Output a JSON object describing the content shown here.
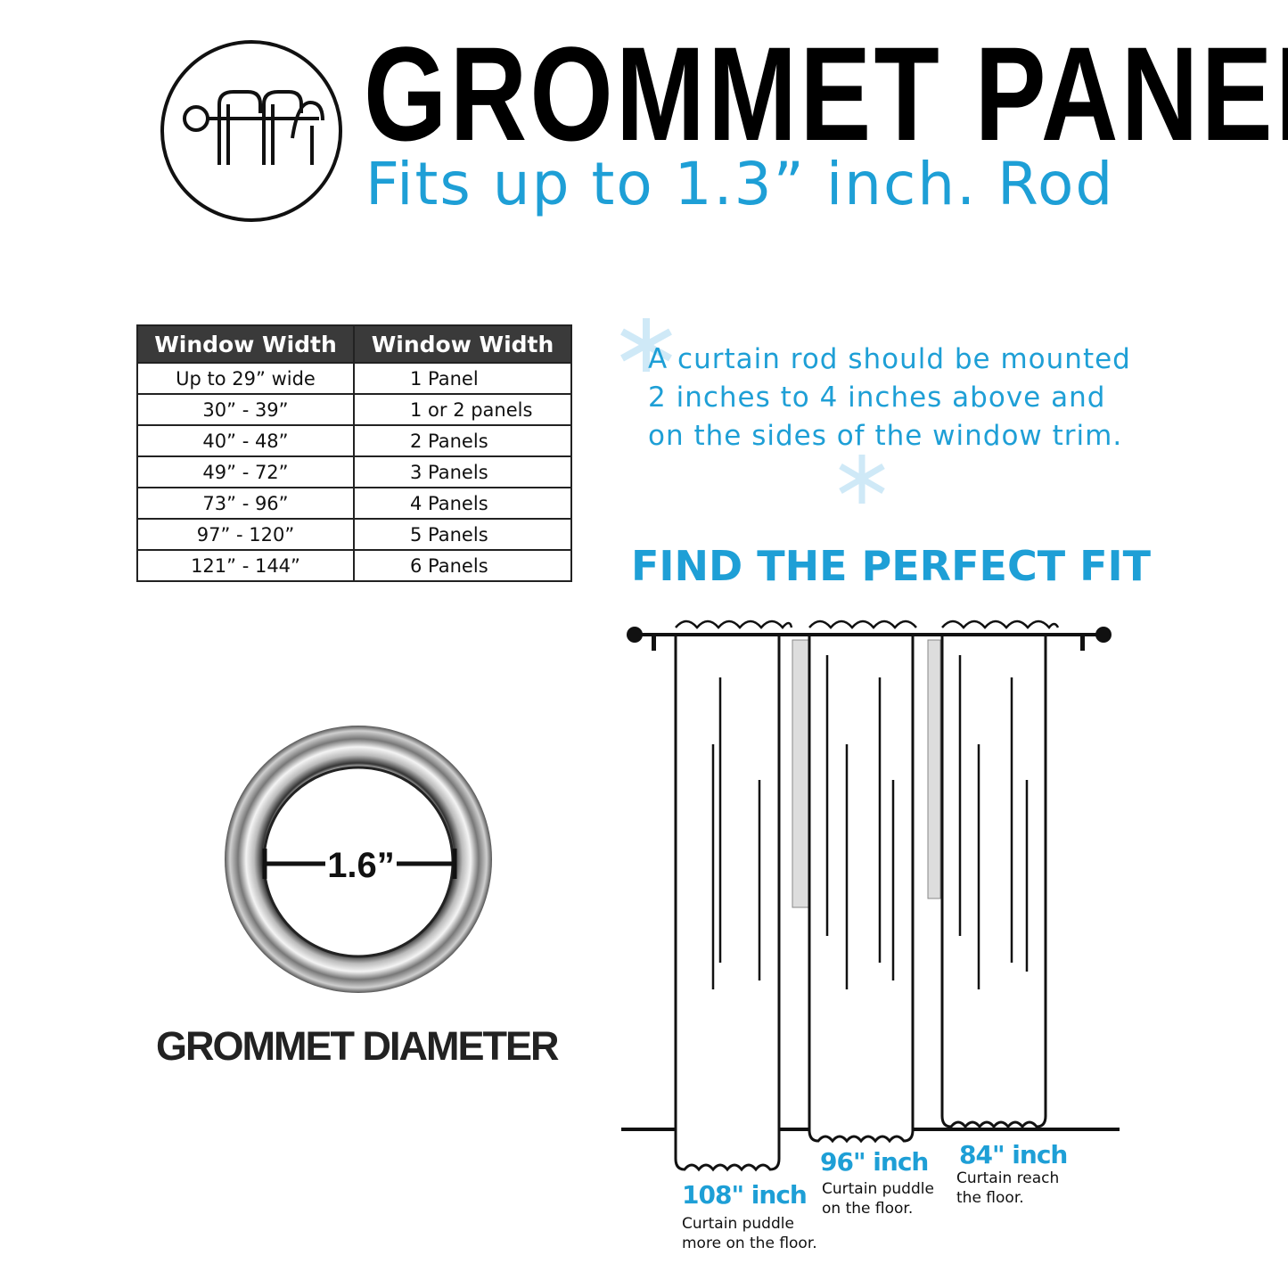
{
  "header": {
    "title": "GROMMET PANEL",
    "subtitle": "Fits up to 1.3” inch. Rod",
    "logo_icon": "curtain-rod-rings-icon"
  },
  "size_table": {
    "headers": [
      "Window Width",
      "Window Width"
    ],
    "rows": [
      [
        "Up to 29” wide",
        "1 Panel"
      ],
      [
        "30” - 39”",
        "1 or 2 panels"
      ],
      [
        "40” - 48”",
        "2 Panels"
      ],
      [
        "49” - 72”",
        "3 Panels"
      ],
      [
        "73” - 96”",
        "4 Panels"
      ],
      [
        "97” - 120”",
        "5 Panels"
      ],
      [
        "121” - 144”",
        "6 Panels"
      ]
    ]
  },
  "mounting_note": "A curtain rod should be mounted 2 inches to 4 inches above and on the sides of the window trim.",
  "fit": {
    "heading": "FIND THE PERFECT FIT",
    "lengths": [
      {
        "label": "108\" inch",
        "caption_1": "Curtain puddle",
        "caption_2": "more on the floor."
      },
      {
        "label": "96\" inch",
        "caption_1": "Curtain puddle",
        "caption_2": "on the floor."
      },
      {
        "label": "84\" inch",
        "caption_1": "Curtain reach",
        "caption_2": "the floor."
      }
    ]
  },
  "grommet": {
    "diameter": "1.6”",
    "caption": "GROMMET DIAMETER"
  },
  "colors": {
    "accent": "#1e9fd6",
    "table_header": "#3a3a3a",
    "text": "#111111"
  }
}
